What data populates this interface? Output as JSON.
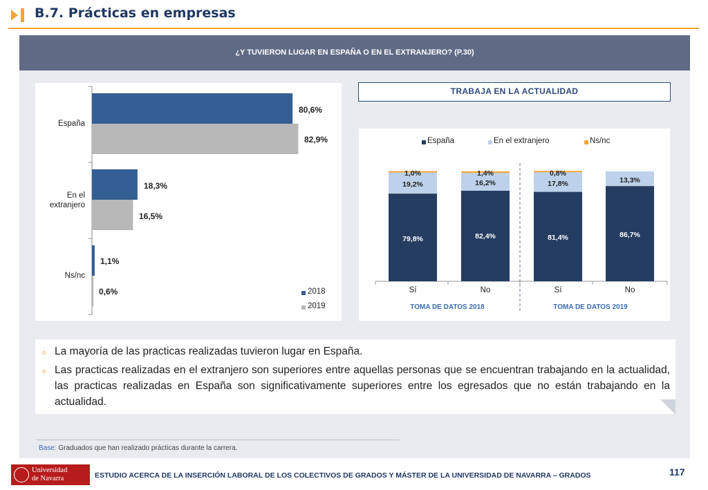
{
  "header": {
    "title": "B.7. Prácticas en empresas"
  },
  "panel": {
    "question": "¿Y TUVIERON LUGAR EN ESPAÑA O EN EL EXTRANJERO? (P.30)"
  },
  "colors": {
    "dark_blue": "#345e94",
    "gray": "#b8b8b8",
    "navy": "#253d61",
    "light_blue": "#bdd1ea",
    "orange": "#f4a43a"
  },
  "chart_data": [
    {
      "type": "bar",
      "orientation": "horizontal",
      "categories": [
        "España",
        "En el extranjero",
        "Ns/nc"
      ],
      "category_labels": [
        "España",
        "En el\nextranjero",
        "Ns/nc"
      ],
      "series": [
        {
          "name": "2018",
          "values": [
            80.6,
            18.3,
            1.1
          ],
          "labels": [
            "80,6%",
            "18,3%",
            "1,1%"
          ]
        },
        {
          "name": "2019",
          "values": [
            82.9,
            16.5,
            0.6
          ],
          "labels": [
            "82,9%",
            "16,5%",
            "0,6%"
          ]
        }
      ],
      "xlim": [
        0,
        100
      ],
      "legend": "bottom-right"
    },
    {
      "type": "bar",
      "stacked": true,
      "title": "TRABAJA EN LA ACTUALIDAD",
      "categories": [
        "Sí",
        "No",
        "Sí",
        "No"
      ],
      "groups": [
        "TOMA DE DATOS 2018",
        "TOMA DE DATOS 2019"
      ],
      "series": [
        {
          "name": "España",
          "values": [
            79.8,
            82.4,
            81.4,
            86.7
          ],
          "labels": [
            "79,8%",
            "82,4%",
            "81,4%",
            "86,7%"
          ]
        },
        {
          "name": "En el extranjero",
          "values": [
            19.2,
            16.2,
            17.8,
            13.3
          ],
          "labels": [
            "19,2%",
            "16,2%",
            "17,8%",
            "13,3%"
          ]
        },
        {
          "name": "Ns/nc",
          "values": [
            1.0,
            1.4,
            0.8,
            0
          ],
          "labels": [
            "1,0%",
            "1,4%",
            "0,8%",
            ""
          ]
        }
      ],
      "ylim": [
        0,
        100
      ],
      "legend": "top"
    }
  ],
  "notes": [
    "La mayoría de las practicas realizadas tuvieron lugar en España.",
    "Las practicas realizadas en el extranjero son superiores entre aquellas personas que se encuentran trabajando en la actualidad, las practicas realizadas en España son significativamente superiores entre los egresados que no están trabajando en la actualidad."
  ],
  "base": {
    "key": "Base:",
    "text": "Graduados que han realizado prácticas durante la carrera."
  },
  "footer": {
    "university_line1": "Universidad",
    "university_line2": "de Navarra",
    "study": "ESTUDIO ACERCA DE LA INSERCIÓN LABORAL DE LOS COLECTIVOS DE GRADOS Y MÁSTER DE LA UNIVERSIDAD DE NAVARRA – GRADOS",
    "page": "117"
  }
}
